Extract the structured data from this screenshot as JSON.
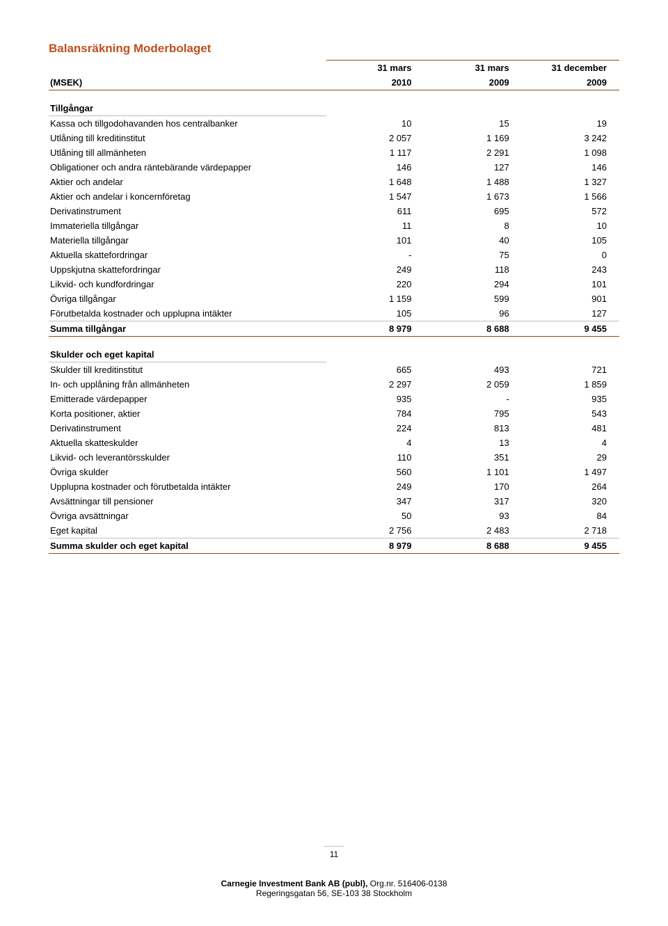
{
  "title": "Balansräkning Moderbolaget",
  "unit_label": "(MSEK)",
  "col_headers_top": [
    "31 mars",
    "31 mars",
    "31 december"
  ],
  "col_headers_year": [
    "2010",
    "2009",
    "2009"
  ],
  "section1_title": "Tillgångar",
  "assets": [
    {
      "label": "Kassa och tillgodohavanden hos centralbanker",
      "c1": "10",
      "c2": "15",
      "c3": "19"
    },
    {
      "label": "Utlåning till kreditinstitut",
      "c1": "2 057",
      "c2": "1 169",
      "c3": "3 242"
    },
    {
      "label": "Utlåning till allmänheten",
      "c1": "1 117",
      "c2": "2 291",
      "c3": "1 098"
    },
    {
      "label": "Obligationer och andra räntebärande värdepapper",
      "c1": "146",
      "c2": "127",
      "c3": "146"
    },
    {
      "label": "Aktier och andelar",
      "c1": "1 648",
      "c2": "1 488",
      "c3": "1 327"
    },
    {
      "label": "Aktier och andelar i koncernföretag",
      "c1": "1 547",
      "c2": "1 673",
      "c3": "1 566"
    },
    {
      "label": "Derivatinstrument",
      "c1": "611",
      "c2": "695",
      "c3": "572"
    },
    {
      "label": "Immateriella tillgångar",
      "c1": "11",
      "c2": "8",
      "c3": "10"
    },
    {
      "label": "Materiella tillgångar",
      "c1": "101",
      "c2": "40",
      "c3": "105"
    },
    {
      "label": "Aktuella skattefordringar",
      "c1": "-",
      "c2": "75",
      "c3": "0"
    },
    {
      "label": "Uppskjutna skattefordringar",
      "c1": "249",
      "c2": "118",
      "c3": "243"
    },
    {
      "label": "Likvid- och kundfordringar",
      "c1": "220",
      "c2": "294",
      "c3": "101"
    },
    {
      "label": "Övriga tillgångar",
      "c1": "1 159",
      "c2": "599",
      "c3": "901"
    },
    {
      "label": "Förutbetalda kostnader och upplupna intäkter",
      "c1": "105",
      "c2": "96",
      "c3": "127"
    }
  ],
  "assets_sum": {
    "label": "Summa tillgångar",
    "c1": "8 979",
    "c2": "8 688",
    "c3": "9 455"
  },
  "section2_title": "Skulder och eget kapital",
  "liab": [
    {
      "label": "Skulder till kreditinstitut",
      "c1": "665",
      "c2": "493",
      "c3": "721"
    },
    {
      "label": "In- och upplåning från allmänheten",
      "c1": "2 297",
      "c2": "2 059",
      "c3": "1 859"
    },
    {
      "label": "Emitterade värdepapper",
      "c1": "935",
      "c2": "-",
      "c3": "935"
    },
    {
      "label": "Korta positioner, aktier",
      "c1": "784",
      "c2": "795",
      "c3": "543"
    },
    {
      "label": "Derivatinstrument",
      "c1": "224",
      "c2": "813",
      "c3": "481"
    },
    {
      "label": "Aktuella skatteskulder",
      "c1": "4",
      "c2": "13",
      "c3": "4"
    },
    {
      "label": "Likvid- och leverantörsskulder",
      "c1": "110",
      "c2": "351",
      "c3": "29"
    },
    {
      "label": "Övriga skulder",
      "c1": "560",
      "c2": "1 101",
      "c3": "1 497"
    },
    {
      "label": "Upplupna kostnader och förutbetalda intäkter",
      "c1": "249",
      "c2": "170",
      "c3": "264"
    },
    {
      "label": "Avsättningar till pensioner",
      "c1": "347",
      "c2": "317",
      "c3": "320"
    },
    {
      "label": "Övriga avsättningar",
      "c1": "50",
      "c2": "93",
      "c3": "84"
    },
    {
      "label": "Eget kapital",
      "c1": "2 756",
      "c2": "2 483",
      "c3": "2 718"
    }
  ],
  "liab_sum": {
    "label": "Summa skulder och eget kapital",
    "c1": "8 979",
    "c2": "8 688",
    "c3": "9 455"
  },
  "page_number": "11",
  "footer_company": "Carnegie Investment Bank AB (publ),",
  "footer_org": " Org.nr. 516406-0138",
  "footer_addr": "Regeringsgatan 56, SE-103 38 Stockholm",
  "colors": {
    "title": "#c14e1f",
    "rule_dark": "#8b4a1a",
    "rule_light": "#bfbfbf",
    "text": "#000000",
    "background": "#ffffff"
  },
  "typography": {
    "title_fontsize_pt": 13,
    "body_fontsize_pt": 10,
    "font_family": "Arial"
  },
  "table_layout": {
    "label_width_pct": 52,
    "num_col_width_pct": 16,
    "num_align": "right"
  }
}
